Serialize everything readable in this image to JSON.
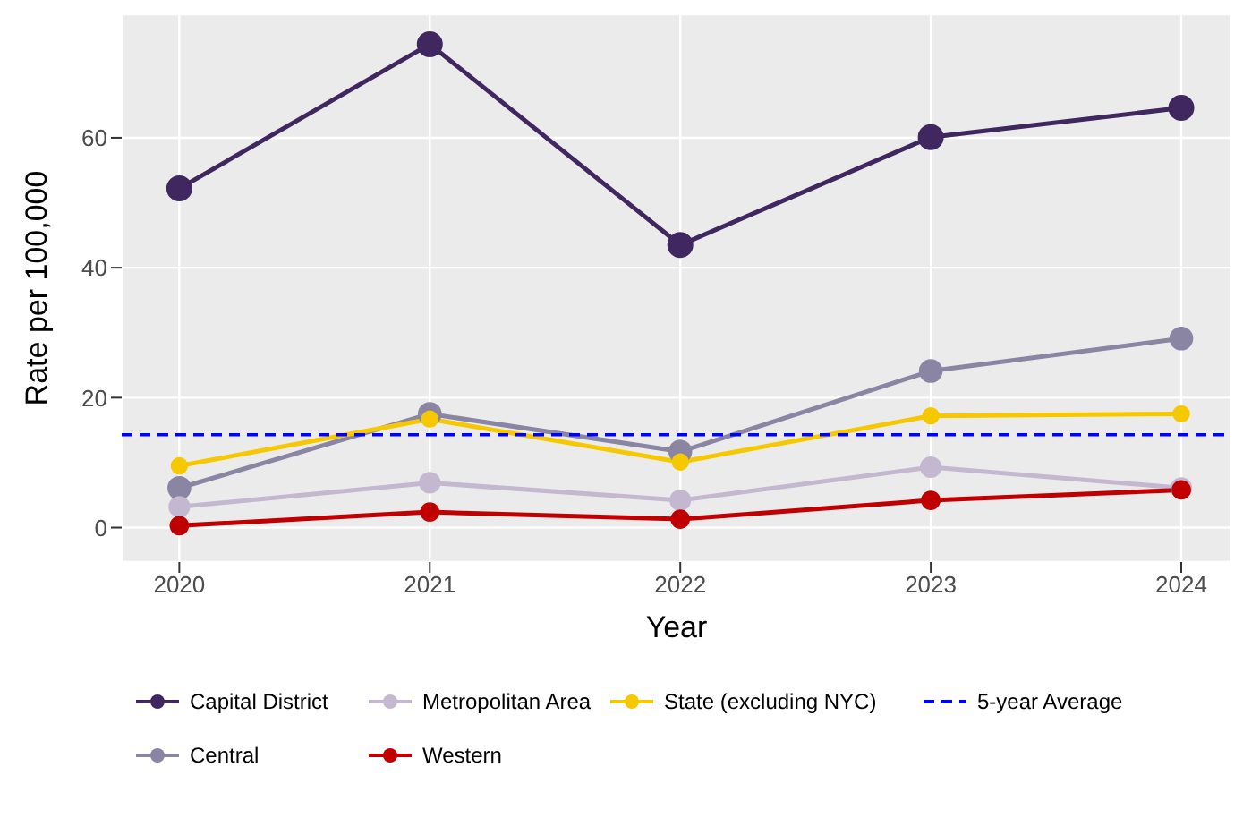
{
  "chart_data": {
    "type": "line",
    "xlabel": "Year",
    "ylabel": "Rate per 100,000",
    "x": [
      2020,
      2021,
      2022,
      2023,
      2024
    ],
    "xlim": [
      2019.77,
      2024.2
    ],
    "xticks": [
      2020,
      2021,
      2022,
      2023,
      2024
    ],
    "ylim": [
      -5.3,
      79
    ],
    "yticks": [
      0,
      20,
      40,
      60
    ],
    "series": [
      {
        "name": "Capital District",
        "color": "#40275f",
        "values": [
          52.2,
          74.4,
          43.5,
          60.1,
          64.6
        ]
      },
      {
        "name": "Central",
        "color": "#8a85a3",
        "values": [
          6.1,
          17.5,
          11.7,
          24.1,
          29.1
        ]
      },
      {
        "name": "Metropolitan Area",
        "color": "#c4b8d0",
        "values": [
          3.2,
          6.9,
          4.2,
          9.3,
          6.1
        ]
      },
      {
        "name": "Western",
        "color": "#c00000",
        "values": [
          0.3,
          2.4,
          1.3,
          4.2,
          5.8
        ]
      },
      {
        "name": "State (excluding NYC)",
        "color": "#f5c800",
        "values": [
          9.5,
          16.7,
          10.1,
          17.2,
          17.5
        ]
      }
    ],
    "ref_lines": [
      {
        "axis": "y",
        "value": 14.3,
        "label": "5-year Average",
        "color": "#0000ff",
        "line_style": "dashed"
      }
    ],
    "grid": true,
    "legend": "bottom",
    "marker": "circle",
    "line_style": "solid"
  }
}
